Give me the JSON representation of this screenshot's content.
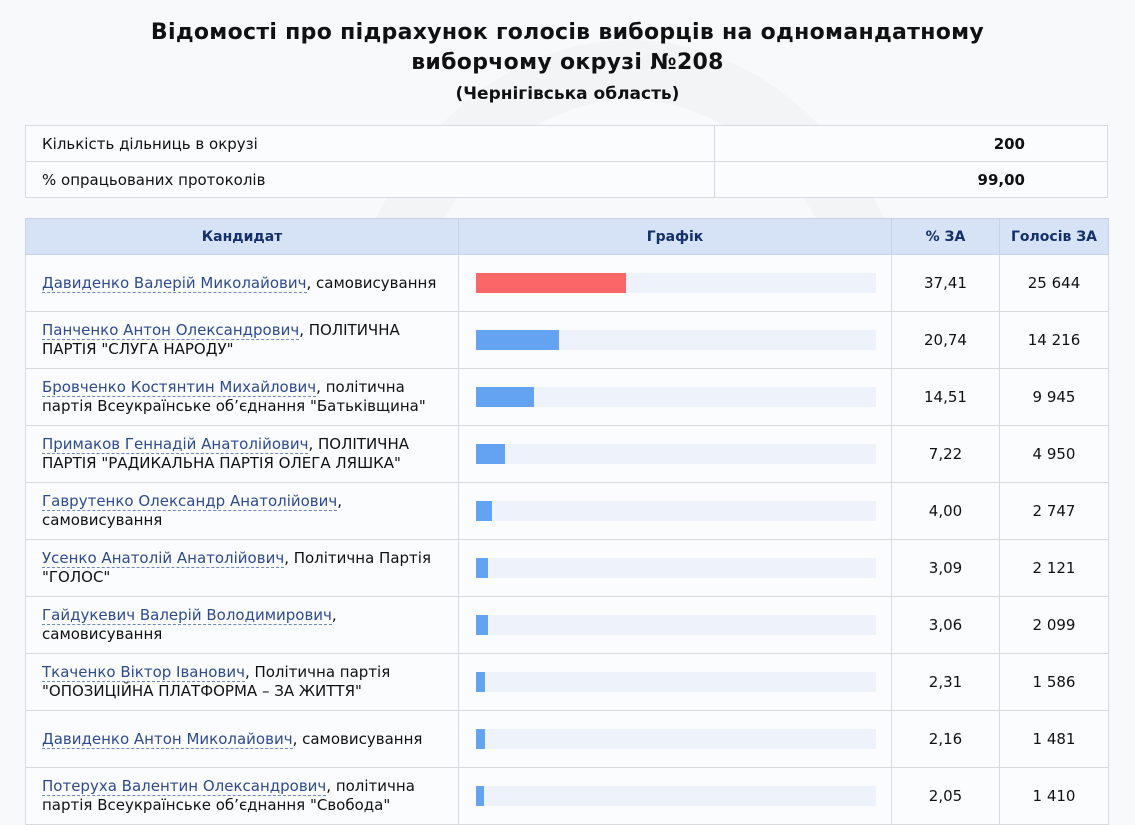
{
  "header": {
    "title_line1": "Відомості про підрахунок голосів виборців на одномандатному",
    "title_line2": "виборчому окрузі №208",
    "subtitle": "(Чернігівська область)"
  },
  "summary": [
    {
      "label": "Кількість дільниць в окрузі",
      "value": "200"
    },
    {
      "label": "% опрацьованих протоколів",
      "value": "99,00"
    }
  ],
  "columns": {
    "candidate": "Кандидат",
    "chart": "Графік",
    "percent": "% ЗА",
    "votes": "Голосів ЗА"
  },
  "colors": {
    "leader_bar": "#fb6769",
    "bar": "#63a3f2",
    "track": "#eef2fb",
    "header_bg": "#d6e2f5"
  },
  "chart_data": {
    "type": "bar",
    "categories": [
      "Давиденко Валерій Миколайович",
      "Панченко Антон Олександрович",
      "Бровченко Костянтин Михайлович",
      "Примаков Геннадій Анатолійович",
      "Гаврутенко Олександр Анатолійович",
      "Усенко Анатолій Анатолійович",
      "Гайдукевич Валерій Володимирович",
      "Ткаченко Віктор Іванович",
      "Давиденко Антон Миколайович",
      "Потеруха Валентин Олександрович"
    ],
    "values": [
      37.41,
      20.74,
      14.51,
      7.22,
      4.0,
      3.09,
      3.06,
      2.31,
      2.16,
      2.05
    ],
    "xlim": [
      0,
      100
    ]
  },
  "candidates": [
    {
      "name": "Давиденко Валерій Миколайович",
      "party": ", самовисування",
      "percent": "37,41",
      "votes": "25 644",
      "pct": 37.41
    },
    {
      "name": "Панченко Антон Олександрович",
      "party": ", ПОЛІТИЧНА ПАРТІЯ \"СЛУГА НАРОДУ\"",
      "percent": "20,74",
      "votes": "14 216",
      "pct": 20.74
    },
    {
      "name": "Бровченко Костянтин Михайлович",
      "party": ", політична партія Всеукраїнське об’єднання \"Батьківщина\"",
      "percent": "14,51",
      "votes": "9 945",
      "pct": 14.51
    },
    {
      "name": "Примаков Геннадій Анатолійович",
      "party": ", ПОЛІТИЧНА ПАРТІЯ \"РАДИКАЛЬНА ПАРТІЯ ОЛЕГА ЛЯШКА\"",
      "percent": "7,22",
      "votes": "4 950",
      "pct": 7.22
    },
    {
      "name": "Гаврутенко Олександр Анатолійович",
      "party": ", самовисування",
      "percent": "4,00",
      "votes": "2 747",
      "pct": 4.0
    },
    {
      "name": "Усенко Анатолій Анатолійович",
      "party": ", Політична Партія \"ГОЛОС\"",
      "percent": "3,09",
      "votes": "2 121",
      "pct": 3.09
    },
    {
      "name": "Гайдукевич Валерій Володимирович",
      "party": ", самовисування",
      "percent": "3,06",
      "votes": "2 099",
      "pct": 3.06
    },
    {
      "name": "Ткаченко Віктор Іванович",
      "party": ", Політична партія \"ОПОЗИЦІЙНА ПЛАТФОРМА – ЗА ЖИТТЯ\"",
      "percent": "2,31",
      "votes": "1 586",
      "pct": 2.31
    },
    {
      "name": "Давиденко Антон Миколайович",
      "party": ", самовисування",
      "percent": "2,16",
      "votes": "1 481",
      "pct": 2.16
    },
    {
      "name": "Потеруха Валентин Олександрович",
      "party": ", політична партія Всеукраїнське об’єднання \"Свобода\"",
      "percent": "2,05",
      "votes": "1 410",
      "pct": 2.05
    }
  ]
}
